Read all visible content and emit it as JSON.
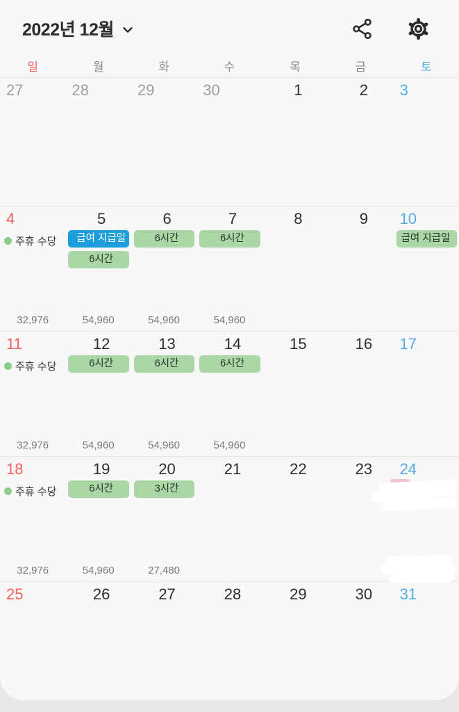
{
  "header": {
    "title": "2022년 12월"
  },
  "weekdays": [
    {
      "label": "일",
      "type": "sunday"
    },
    {
      "label": "월",
      "type": "weekday"
    },
    {
      "label": "화",
      "type": "weekday"
    },
    {
      "label": "수",
      "type": "weekday"
    },
    {
      "label": "목",
      "type": "weekday"
    },
    {
      "label": "금",
      "type": "weekday"
    },
    {
      "label": "토",
      "type": "saturday"
    }
  ],
  "weeks": [
    {
      "days": [
        {
          "number": "27",
          "type": "adjacent"
        },
        {
          "number": "28",
          "type": "adjacent"
        },
        {
          "number": "29",
          "type": "adjacent"
        },
        {
          "number": "30",
          "type": "adjacent"
        },
        {
          "number": "1",
          "type": "weekday"
        },
        {
          "number": "2",
          "type": "weekday"
        },
        {
          "number": "3",
          "type": "saturday"
        }
      ]
    },
    {
      "days": [
        {
          "number": "4",
          "type": "sunday",
          "dot_label": "주휴 수당",
          "amount": "32,976"
        },
        {
          "number": "5",
          "type": "weekday",
          "badges": [
            {
              "text": "급여 지급일",
              "style": "blue"
            },
            {
              "text": "6시간",
              "style": "green"
            }
          ],
          "amount": "54,960"
        },
        {
          "number": "6",
          "type": "weekday",
          "badges": [
            {
              "text": "6시간",
              "style": "green"
            }
          ],
          "amount": "54,960"
        },
        {
          "number": "7",
          "type": "weekday",
          "badges": [
            {
              "text": "6시간",
              "style": "green"
            }
          ],
          "amount": "54,960"
        },
        {
          "number": "8",
          "type": "weekday"
        },
        {
          "number": "9",
          "type": "weekday"
        },
        {
          "number": "10",
          "type": "saturday",
          "badges": [
            {
              "text": "급여 지급일",
              "style": "green"
            }
          ]
        }
      ]
    },
    {
      "days": [
        {
          "number": "11",
          "type": "sunday",
          "dot_label": "주휴 수당",
          "amount": "32,976"
        },
        {
          "number": "12",
          "type": "weekday",
          "badges": [
            {
              "text": "6시간",
              "style": "green"
            }
          ],
          "amount": "54,960"
        },
        {
          "number": "13",
          "type": "weekday",
          "badges": [
            {
              "text": "6시간",
              "style": "green"
            }
          ],
          "amount": "54,960"
        },
        {
          "number": "14",
          "type": "weekday",
          "badges": [
            {
              "text": "6시간",
              "style": "green"
            }
          ],
          "amount": "54,960"
        },
        {
          "number": "15",
          "type": "weekday"
        },
        {
          "number": "16",
          "type": "weekday"
        },
        {
          "number": "17",
          "type": "saturday"
        }
      ]
    },
    {
      "days": [
        {
          "number": "18",
          "type": "sunday",
          "dot_label": "주휴 수당",
          "amount": "32,976"
        },
        {
          "number": "19",
          "type": "weekday",
          "badges": [
            {
              "text": "6시간",
              "style": "green"
            }
          ],
          "amount": "54,960"
        },
        {
          "number": "20",
          "type": "weekday",
          "badges": [
            {
              "text": "3시간",
              "style": "green"
            }
          ],
          "amount": "27,480"
        },
        {
          "number": "21",
          "type": "weekday"
        },
        {
          "number": "22",
          "type": "weekday"
        },
        {
          "number": "23",
          "type": "weekday"
        },
        {
          "number": "24",
          "type": "saturday",
          "redacted": true
        }
      ]
    },
    {
      "days": [
        {
          "number": "25",
          "type": "sunday"
        },
        {
          "number": "26",
          "type": "weekday"
        },
        {
          "number": "27",
          "type": "weekday"
        },
        {
          "number": "28",
          "type": "weekday"
        },
        {
          "number": "29",
          "type": "weekday"
        },
        {
          "number": "30",
          "type": "weekday"
        },
        {
          "number": "31",
          "type": "saturday"
        }
      ]
    }
  ],
  "colors": {
    "sunday": "#f4605d",
    "saturday": "#55ace4",
    "adjacent_month": "#9e9e9e",
    "current_month": "#2d2d2d",
    "badge_green": "#a9d8a6",
    "badge_blue": "#1e9ddc",
    "dot_green": "#8ccd8b",
    "amount_text": "#7a7a7a"
  }
}
